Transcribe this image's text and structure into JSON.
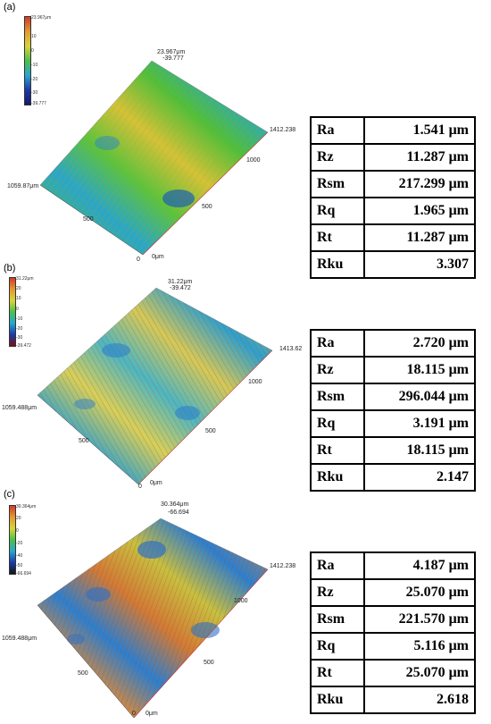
{
  "panels": [
    {
      "label": "(a)",
      "scale": {
        "max": "23.967μm",
        "ticks": [
          "10",
          "0",
          "-10",
          "-20",
          "-30"
        ],
        "min": "-39.777"
      },
      "peak_labels": [
        "23.967μm",
        "-39.777"
      ],
      "axis_labels": {
        "right": "1412.238",
        "mid_right": "1000",
        "left": "1059.87μm",
        "mid_left": "500",
        "mid_low": "500",
        "origin_0": "0",
        "origin_um": "0μm"
      },
      "colors": {
        "base": "#4fbf3a",
        "band": "#2aa6c8",
        "ridge": "#d4c238"
      },
      "table": [
        {
          "param": "Ra",
          "value": "1.541 μm"
        },
        {
          "param": "Rz",
          "value": "11.287 μm"
        },
        {
          "param": "Rsm",
          "value": "217.299 μm"
        },
        {
          "param": "Rq",
          "value": "1.965 μm"
        },
        {
          "param": "Rt",
          "value": "11.287 μm"
        },
        {
          "param": "Rku",
          "value": "3.307"
        }
      ]
    },
    {
      "label": "(b)",
      "scale": {
        "max": "31.22μm",
        "ticks": [
          "20",
          "10",
          "0",
          "-10",
          "-20",
          "-30"
        ],
        "min": "-39.472"
      },
      "peak_labels": [
        "31.22μm",
        "-39.472"
      ],
      "axis_labels": {
        "right": "1413.62",
        "mid_right": "1000",
        "left": "1059.488μm",
        "mid_left": "500",
        "mid_low": "500",
        "origin_0": "0",
        "origin_um": "0μm"
      },
      "colors": {
        "base": "#c9c146",
        "band": "#2e9fcf",
        "ridge": "#e8d66a"
      },
      "table": [
        {
          "param": "Ra",
          "value": "2.720 μm"
        },
        {
          "param": "Rz",
          "value": "18.115 μm"
        },
        {
          "param": "Rsm",
          "value": "296.044 μm"
        },
        {
          "param": "Rq",
          "value": "3.191 μm"
        },
        {
          "param": "Rt",
          "value": "18.115 μm"
        },
        {
          "param": "Rku",
          "value": "2.147"
        }
      ]
    },
    {
      "label": "(c)",
      "scale": {
        "max": "30.364μm",
        "ticks": [
          "20",
          "0",
          "-20",
          "-40",
          "-50"
        ],
        "min": "-66.694"
      },
      "peak_labels": [
        "30.364μm",
        "-66.694"
      ],
      "axis_labels": {
        "right": "1412.238",
        "mid_right": "1000",
        "left": "1059.488μm",
        "mid_left": "500",
        "mid_low": "500",
        "origin_0": "0",
        "origin_um": "0μm"
      },
      "colors": {
        "base": "#d88a3c",
        "band": "#2c7fd0",
        "ridge": "#c7c040"
      },
      "table": [
        {
          "param": "Ra",
          "value": "4.187 μm"
        },
        {
          "param": "Rz",
          "value": "25.070 μm"
        },
        {
          "param": "Rsm",
          "value": "221.570 μm"
        },
        {
          "param": "Rq",
          "value": "5.116 μm"
        },
        {
          "param": "Rt",
          "value": "25.070 μm"
        },
        {
          "param": "Rku",
          "value": "2.618"
        }
      ]
    }
  ]
}
